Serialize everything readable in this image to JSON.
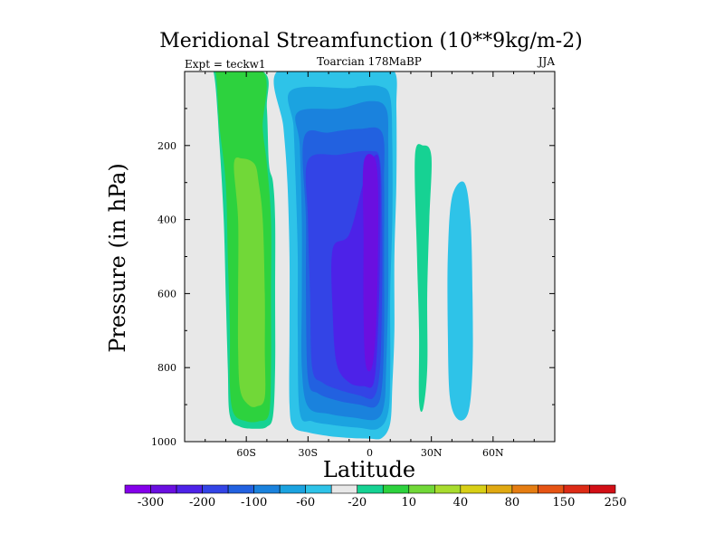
{
  "chart_data": {
    "type": "filled-contour",
    "title": "Meridional Streamfunction (10**9kg/m-2)",
    "left_label": "Expt = teckw1",
    "center_label": "Toarcian 178MaBP",
    "right_label": "JJA",
    "xlabel": "Latitude",
    "ylabel": "Pressure (in hPa)",
    "x_ticks": [
      "60S",
      "30S",
      "0",
      "30N",
      "60N"
    ],
    "x_tick_values": [
      -60,
      -30,
      0,
      30,
      60
    ],
    "xlim": [
      -90,
      90
    ],
    "y_ticks": [
      "200",
      "400",
      "600",
      "800",
      "1000"
    ],
    "y_tick_values": [
      200,
      400,
      600,
      800,
      1000
    ],
    "ylim": [
      0,
      1000
    ],
    "y_inverted": true,
    "background_color": "#e8e8e8",
    "colorbar": {
      "labels": [
        "-300",
        "-200",
        "-100",
        "-60",
        "-20",
        "10",
        "40",
        "80",
        "150",
        "250"
      ],
      "colors": [
        "#8400ea",
        "#6a0fe0",
        "#4d22e8",
        "#3344e6",
        "#2261e0",
        "#1a82dd",
        "#1ba3e0",
        "#2ec3e8",
        "#e8e8e8",
        "#16d293",
        "#2dd23e",
        "#71d838",
        "#a8dc2e",
        "#d8cf16",
        "#e0a912",
        "#e57d12",
        "#e65414",
        "#dd2b16",
        "#d20f16"
      ]
    },
    "regions": [
      {
        "name": "sh-cell-level-1",
        "value": 10,
        "color": "#16d293",
        "outline": [
          [
            -82,
            0
          ],
          [
            -76,
            0
          ],
          [
            -73,
            200
          ],
          [
            -71,
            400
          ],
          [
            -70,
            600
          ],
          [
            -69,
            800
          ],
          [
            -68,
            930
          ],
          [
            -63,
            960
          ],
          [
            -55,
            965
          ],
          [
            -50,
            960
          ],
          [
            -47,
            930
          ],
          [
            -46,
            800
          ],
          [
            -46,
            600
          ],
          [
            -46,
            400
          ],
          [
            -47,
            300
          ],
          [
            -49,
            250
          ],
          [
            -50,
            100
          ],
          [
            -52,
            0
          ],
          [
            -82,
            0
          ]
        ]
      },
      {
        "name": "sh-cell-level-2",
        "value": 40,
        "color": "#2dd23e",
        "outline": [
          [
            -79,
            0
          ],
          [
            -75,
            0
          ],
          [
            -73,
            150
          ],
          [
            -70,
            300
          ],
          [
            -69,
            500
          ],
          [
            -68,
            700
          ],
          [
            -68,
            850
          ],
          [
            -66,
            925
          ],
          [
            -60,
            945
          ],
          [
            -54,
            945
          ],
          [
            -49,
            925
          ],
          [
            -48,
            800
          ],
          [
            -48,
            600
          ],
          [
            -48,
            400
          ],
          [
            -50,
            250
          ],
          [
            -52,
            150
          ],
          [
            -52,
            0
          ],
          [
            -79,
            0
          ]
        ]
      },
      {
        "name": "sh-cell-level-3",
        "value": 80,
        "color": "#71d838",
        "outline": [
          [
            -66,
            250
          ],
          [
            -64,
            400
          ],
          [
            -64,
            600
          ],
          [
            -64,
            750
          ],
          [
            -63,
            860
          ],
          [
            -59,
            900
          ],
          [
            -55,
            905
          ],
          [
            -51,
            880
          ],
          [
            -51,
            750
          ],
          [
            -51,
            600
          ],
          [
            -52,
            400
          ],
          [
            -54,
            300
          ],
          [
            -56,
            250
          ],
          [
            -62,
            235
          ],
          [
            -66,
            250
          ]
        ]
      },
      {
        "name": "tropics-cell-level-1",
        "value": -20,
        "color": "#2ec3e8",
        "outline": [
          [
            -45,
            0
          ],
          [
            -13,
            0
          ],
          [
            0,
            0
          ],
          [
            12,
            0
          ],
          [
            13,
            100
          ],
          [
            13,
            300
          ],
          [
            12,
            500
          ],
          [
            12,
            700
          ],
          [
            11,
            850
          ],
          [
            10,
            950
          ],
          [
            6,
            990
          ],
          [
            0,
            992
          ],
          [
            -10,
            990
          ],
          [
            -20,
            985
          ],
          [
            -30,
            975
          ],
          [
            -37,
            960
          ],
          [
            -39,
            900
          ],
          [
            -39,
            700
          ],
          [
            -39,
            500
          ],
          [
            -40,
            300
          ],
          [
            -42,
            150
          ],
          [
            -45,
            0
          ]
        ]
      },
      {
        "name": "tropics-cell-level-2",
        "value": -60,
        "color": "#1ba3e0",
        "outline": [
          [
            -38,
            50
          ],
          [
            -10,
            45
          ],
          [
            -5,
            40
          ],
          [
            5,
            40
          ],
          [
            10,
            70
          ],
          [
            11,
            200
          ],
          [
            11,
            400
          ],
          [
            10,
            600
          ],
          [
            10,
            800
          ],
          [
            9,
            920
          ],
          [
            4,
            965
          ],
          [
            -6,
            962
          ],
          [
            -18,
            955
          ],
          [
            -28,
            945
          ],
          [
            -34,
            920
          ],
          [
            -35,
            700
          ],
          [
            -35,
            500
          ],
          [
            -36,
            300
          ],
          [
            -37,
            150
          ],
          [
            -38,
            50
          ]
        ]
      },
      {
        "name": "tropics-cell-level-3",
        "value": -100,
        "color": "#1a82dd",
        "outline": [
          [
            -35,
            110
          ],
          [
            -15,
            100
          ],
          [
            0,
            80
          ],
          [
            8,
            100
          ],
          [
            9,
            200
          ],
          [
            9,
            400
          ],
          [
            9,
            600
          ],
          [
            8,
            800
          ],
          [
            7,
            900
          ],
          [
            3,
            940
          ],
          [
            -8,
            935
          ],
          [
            -20,
            925
          ],
          [
            -30,
            905
          ],
          [
            -33,
            800
          ],
          [
            -33,
            600
          ],
          [
            -33,
            400
          ],
          [
            -34,
            200
          ],
          [
            -35,
            110
          ]
        ]
      },
      {
        "name": "tropics-cell-level-4",
        "value": -150,
        "color": "#2261e0",
        "outline": [
          [
            -32,
            180
          ],
          [
            -20,
            165
          ],
          [
            -5,
            155
          ],
          [
            6,
            165
          ],
          [
            7,
            300
          ],
          [
            7,
            500
          ],
          [
            7,
            700
          ],
          [
            6,
            850
          ],
          [
            3,
            905
          ],
          [
            -5,
            900
          ],
          [
            -15,
            890
          ],
          [
            -25,
            870
          ],
          [
            -30,
            830
          ],
          [
            -31,
            600
          ],
          [
            -31,
            400
          ],
          [
            -32,
            180
          ]
        ]
      },
      {
        "name": "tropics-cell-level-5",
        "value": -200,
        "color": "#3344e6",
        "outline": [
          [
            -30,
            240
          ],
          [
            -15,
            225
          ],
          [
            0,
            215
          ],
          [
            5,
            240
          ],
          [
            6,
            400
          ],
          [
            6,
            600
          ],
          [
            5,
            800
          ],
          [
            2,
            880
          ],
          [
            -5,
            875
          ],
          [
            -15,
            860
          ],
          [
            -23,
            840
          ],
          [
            -28,
            800
          ],
          [
            -29,
            600
          ],
          [
            -30,
            400
          ],
          [
            -30,
            240
          ]
        ]
      },
      {
        "name": "tropics-cell-level-6",
        "value": -250,
        "color": "#4d22e8",
        "outline": [
          [
            -18,
            480
          ],
          [
            -10,
            440
          ],
          [
            -3,
            300
          ],
          [
            2,
            230
          ],
          [
            5,
            260
          ],
          [
            5,
            500
          ],
          [
            4,
            700
          ],
          [
            2,
            840
          ],
          [
            -3,
            850
          ],
          [
            -10,
            840
          ],
          [
            -16,
            790
          ],
          [
            -18,
            650
          ],
          [
            -18,
            480
          ]
        ]
      },
      {
        "name": "tropics-cell-level-7",
        "value": -300,
        "color": "#6a0fe0",
        "outline": [
          [
            -3,
            250
          ],
          [
            2,
            230
          ],
          [
            4,
            300
          ],
          [
            4,
            500
          ],
          [
            3,
            700
          ],
          [
            1,
            800
          ],
          [
            -2,
            790
          ],
          [
            -3,
            650
          ],
          [
            -3,
            450
          ],
          [
            -3,
            250
          ]
        ]
      },
      {
        "name": "nh-band-30n",
        "value": 10,
        "color": "#16d293",
        "outline": [
          [
            22,
            230
          ],
          [
            26,
            200
          ],
          [
            30,
            230
          ],
          [
            29,
            400
          ],
          [
            28,
            600
          ],
          [
            28,
            800
          ],
          [
            26,
            910
          ],
          [
            24,
            890
          ],
          [
            24,
            700
          ],
          [
            23,
            500
          ],
          [
            22,
            230
          ]
        ]
      },
      {
        "name": "nh-cell-50n",
        "value": -20,
        "color": "#2ec3e8",
        "outline": [
          [
            40,
            340
          ],
          [
            46,
            300
          ],
          [
            49,
            400
          ],
          [
            50,
            600
          ],
          [
            50,
            800
          ],
          [
            48,
            920
          ],
          [
            43,
            940
          ],
          [
            39,
            880
          ],
          [
            38,
            700
          ],
          [
            38,
            500
          ],
          [
            40,
            340
          ]
        ]
      }
    ]
  }
}
